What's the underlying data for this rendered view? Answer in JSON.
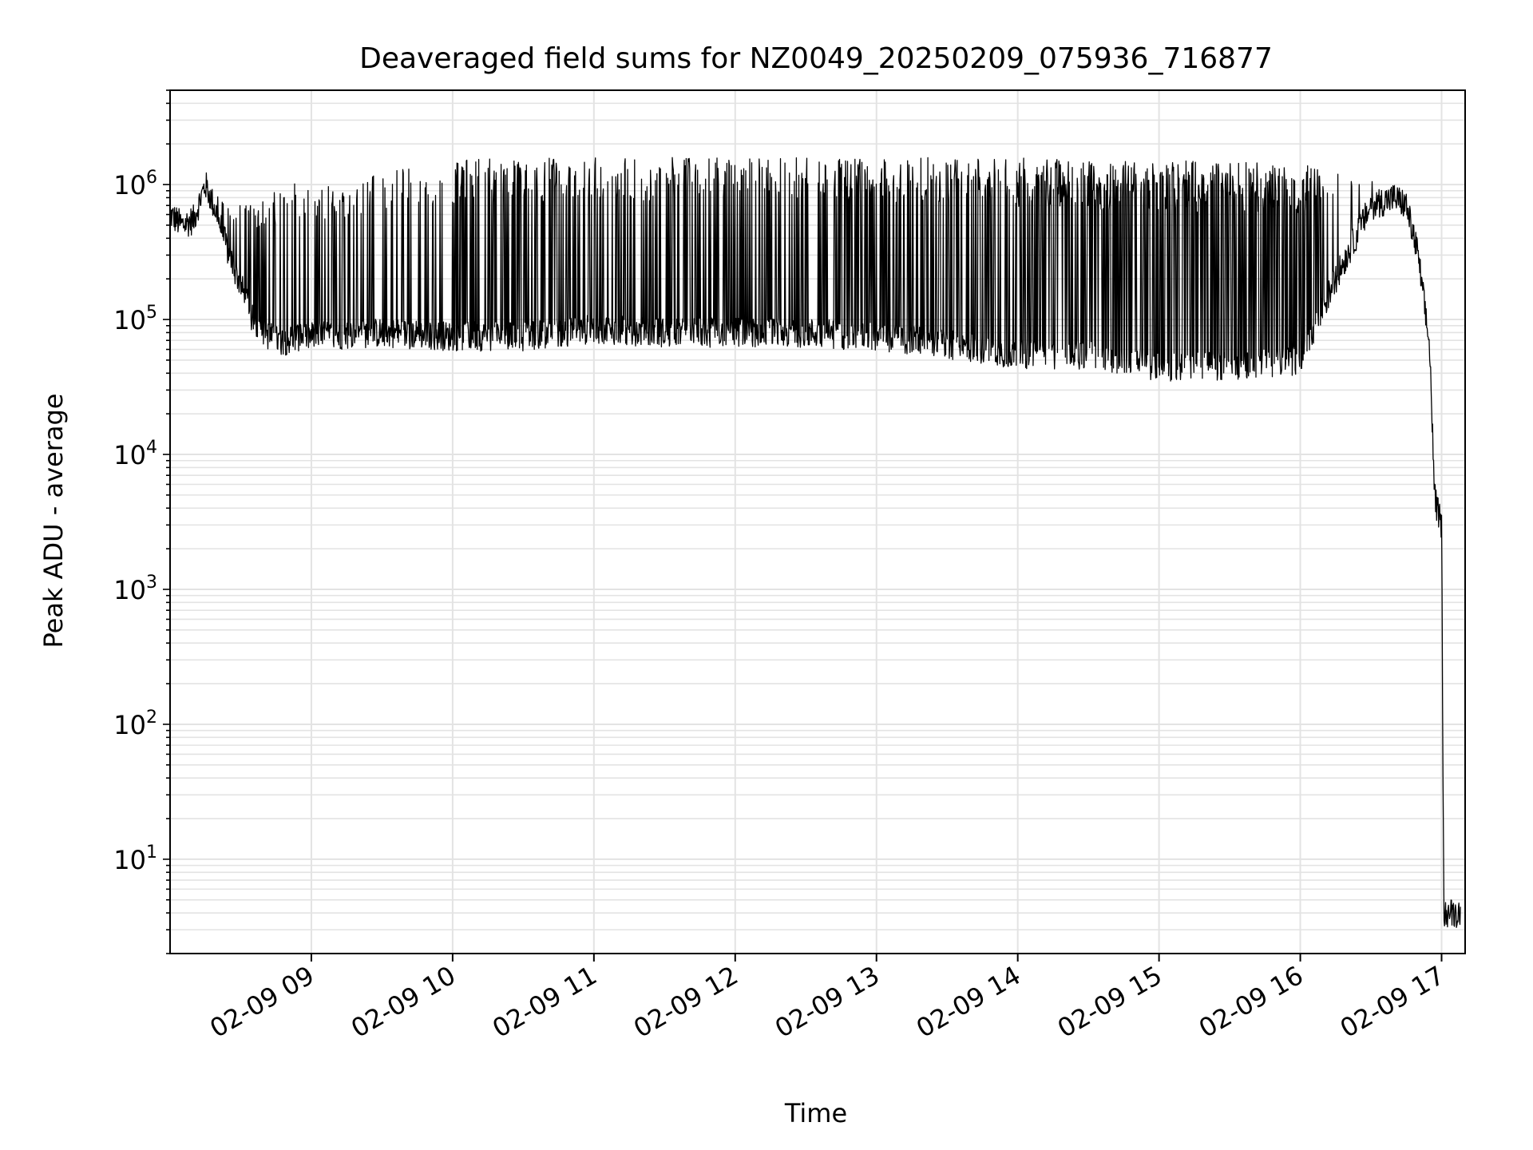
{
  "chart_data": {
    "type": "line",
    "title": "Deaveraged field sums for NZ0049_20250209_075936_716877",
    "xlabel": "Time",
    "ylabel": "Peak ADU - average",
    "x_scale": "time",
    "y_scale": "log",
    "xlim": [
      "2025-02-09 08:00",
      "2025-02-09 17:10"
    ],
    "ylim": [
      2,
      5000000
    ],
    "x_ticks": [
      "02-09 09",
      "02-09 10",
      "02-09 11",
      "02-09 12",
      "02-09 13",
      "02-09 14",
      "02-09 15",
      "02-09 16",
      "02-09 17"
    ],
    "y_ticks": [
      {
        "base": "10",
        "exp": "1"
      },
      {
        "base": "10",
        "exp": "2"
      },
      {
        "base": "10",
        "exp": "3"
      },
      {
        "base": "10",
        "exp": "4"
      },
      {
        "base": "10",
        "exp": "5"
      },
      {
        "base": "10",
        "exp": "6"
      }
    ],
    "grid": true,
    "line_color": "#000000",
    "series": [
      {
        "x": [
          "08:00",
          "08:05",
          "08:10",
          "08:15",
          "08:20",
          "08:25",
          "08:30",
          "08:35",
          "08:40",
          "08:45",
          "08:50",
          "08:55",
          "09:00",
          "09:30",
          "10:00",
          "10:30",
          "11:00",
          "11:30",
          "12:00",
          "12:30",
          "13:00",
          "13:30",
          "14:00",
          "14:30",
          "15:00",
          "15:30",
          "16:00",
          "16:15",
          "16:30",
          "16:40",
          "16:45",
          "16:50",
          "16:55",
          "16:57",
          "16:58",
          "17:00",
          "17:01",
          "17:03",
          "17:05",
          "17:08"
        ],
        "baseline": [
          600000,
          500000,
          550000,
          1000000,
          600000,
          300000,
          180000,
          100000,
          80000,
          70000,
          70000,
          75000,
          75000,
          80000,
          75000,
          75000,
          85000,
          80000,
          80000,
          80000,
          75000,
          65000,
          55000,
          55000,
          45000,
          45000,
          50000,
          200000,
          700000,
          800000,
          700000,
          300000,
          60000,
          5000,
          4000,
          3000,
          4,
          4,
          4,
          4
        ],
        "spike_peak": [
          600000,
          600000,
          700000,
          1300000,
          900000,
          700000,
          700000,
          700000,
          800000,
          1000000,
          1400000,
          1000000,
          900000,
          1300000,
          1500000,
          1600000,
          1600000,
          1600000,
          1600000,
          1600000,
          1600000,
          1600000,
          1600000,
          1500000,
          1500000,
          1500000,
          1400000,
          1300000,
          1100000,
          900000,
          800000,
          300000,
          60000,
          5000,
          4000,
          3000,
          4,
          4,
          4,
          4
        ]
      }
    ]
  }
}
